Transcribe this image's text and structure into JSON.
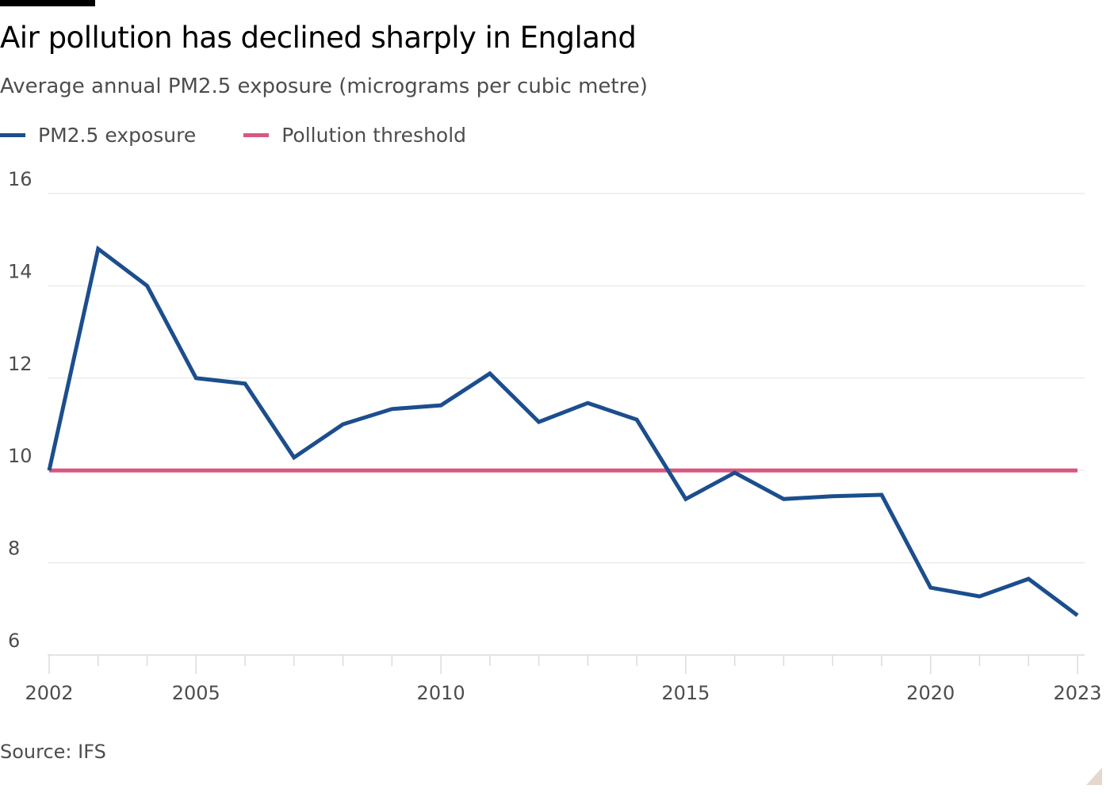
{
  "title": "Air pollution has declined sharply in England",
  "subtitle": "Average annual PM2.5 exposure (micrograms per cubic metre)",
  "source": "Source: IFS",
  "chart_data": {
    "type": "line",
    "title": "Air pollution has declined sharply in England",
    "ylabel": "",
    "xlabel": "",
    "ylim": [
      6,
      16
    ],
    "xlim": [
      2002,
      2023
    ],
    "yticks": [
      6,
      8,
      10,
      12,
      14,
      16
    ],
    "xticks": [
      2002,
      2005,
      2010,
      2015,
      2020,
      2023
    ],
    "grid": true,
    "legend_position": "top-left",
    "x": [
      2002,
      2003,
      2004,
      2005,
      2006,
      2007,
      2008,
      2009,
      2010,
      2011,
      2012,
      2013,
      2014,
      2015,
      2016,
      2017,
      2018,
      2019,
      2020,
      2021,
      2022,
      2023
    ],
    "series": [
      {
        "name": "PM2.5 exposure",
        "color": "#1c4e8d",
        "values": [
          10.0,
          14.8,
          14.0,
          12.0,
          11.88,
          10.28,
          11.0,
          11.33,
          11.41,
          12.1,
          11.05,
          11.46,
          11.1,
          9.38,
          9.95,
          9.38,
          9.44,
          9.47,
          7.46,
          7.27,
          7.65,
          6.86
        ]
      },
      {
        "name": "Pollution threshold",
        "color": "#d9587f",
        "values": [
          10,
          10,
          10,
          10,
          10,
          10,
          10,
          10,
          10,
          10,
          10,
          10,
          10,
          10,
          10,
          10,
          10,
          10,
          10,
          10,
          10,
          10
        ]
      }
    ]
  }
}
